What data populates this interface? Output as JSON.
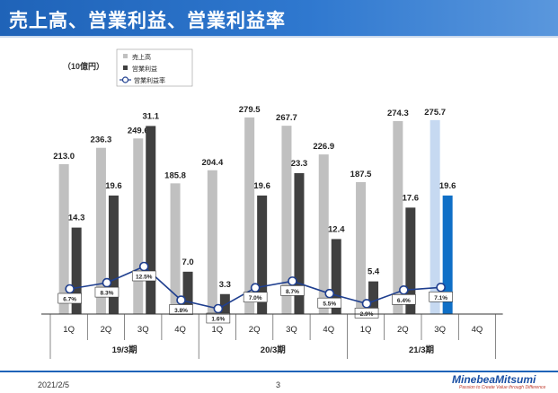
{
  "header": {
    "title": "売上高、営業利益、営業利益率"
  },
  "footer": {
    "date": "2021/2/5",
    "page": "3"
  },
  "logo": {
    "name": "MinebeaMitsumi",
    "tagline": "Passion to Create Value through Difference"
  },
  "colors": {
    "sales": "#c0c0c0",
    "sales_highlight": "#c6d9f1",
    "profit": "#404040",
    "profit_highlight": "#0f6fc6",
    "margin_line": "#1f3f8f",
    "title_bar": "#1f63b8"
  },
  "chart_data": {
    "type": "bar",
    "unit_label": "（10億円）",
    "categories": [
      "1Q",
      "2Q",
      "3Q",
      "4Q",
      "1Q",
      "2Q",
      "3Q",
      "4Q",
      "1Q",
      "2Q",
      "3Q",
      "4Q"
    ],
    "groups": [
      {
        "label": "19/3期",
        "span": 4
      },
      {
        "label": "20/3期",
        "span": 4
      },
      {
        "label": "21/3期",
        "span": 4
      }
    ],
    "series": [
      {
        "name": "売上高",
        "kind": "bar",
        "values": [
          213.0,
          236.3,
          249.6,
          185.8,
          204.4,
          279.5,
          267.7,
          226.9,
          187.5,
          274.3,
          275.7,
          null
        ]
      },
      {
        "name": "営業利益",
        "kind": "bar",
        "values": [
          14.3,
          19.6,
          31.1,
          7.0,
          3.3,
          19.6,
          23.3,
          12.4,
          5.4,
          17.6,
          19.6,
          null
        ]
      },
      {
        "name": "営業利益率",
        "kind": "line",
        "values": [
          "6.7%",
          "8.3%",
          "12.5%",
          "3.8%",
          "1.6%",
          "7.0%",
          "8.7%",
          "5.5%",
          "2.9%",
          "6.4%",
          "7.1%",
          null
        ]
      }
    ],
    "labels": {
      "sales": [
        "213.0",
        "236.3",
        "249.6",
        "185.8",
        "204.4",
        "279.5",
        "267.7",
        "226.9",
        "187.5",
        "274.3",
        "275.7",
        ""
      ],
      "profit": [
        "14.3",
        "19.6",
        "31.1",
        "7.0",
        "3.3",
        "19.6",
        "23.3",
        "12.4",
        "5.4",
        "17.6",
        "19.6",
        ""
      ]
    },
    "highlight_index": 10,
    "legend_position": "top-left",
    "grid": false
  }
}
